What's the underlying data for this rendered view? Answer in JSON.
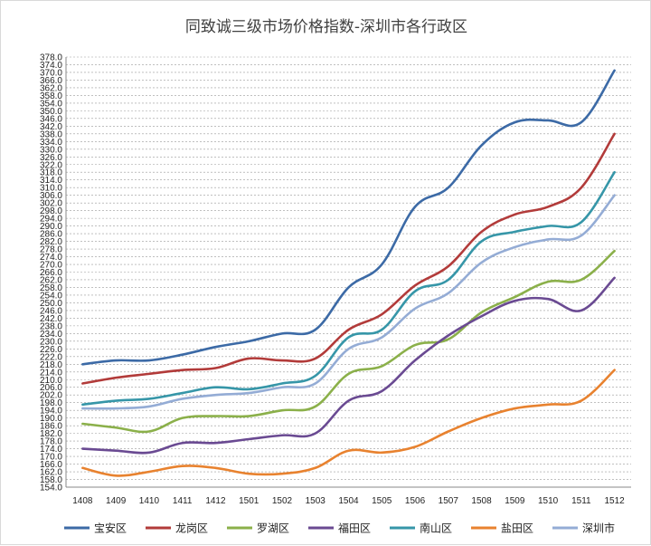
{
  "chart_data": {
    "type": "line",
    "title": "同致诚三级市场价格指数-深圳市各行政区",
    "categories": [
      "1408",
      "1409",
      "1410",
      "1411",
      "1412",
      "1501",
      "1502",
      "1503",
      "1504",
      "1505",
      "1506",
      "1507",
      "1508",
      "1509",
      "1510",
      "1511",
      "1512"
    ],
    "ylim": [
      154.0,
      378.0
    ],
    "ytick_step": 4,
    "grid": "horizontal dashed",
    "legend_position": "bottom",
    "series": [
      {
        "name": "宝安区",
        "color": "#3c6aa6",
        "values": [
          218,
          220,
          220,
          223,
          227,
          230,
          234,
          236,
          258,
          270,
          300,
          310,
          332,
          344,
          345,
          344,
          371
        ]
      },
      {
        "name": "龙岗区",
        "color": "#b23b3a",
        "values": [
          208,
          211,
          213,
          215,
          216,
          221,
          220,
          221,
          236,
          244,
          259,
          269,
          287,
          296,
          300,
          310,
          338
        ]
      },
      {
        "name": "罗湖区",
        "color": "#8bb04a",
        "values": [
          187,
          185,
          183,
          190,
          191,
          191,
          194,
          196,
          213,
          217,
          228,
          231,
          245,
          253,
          261,
          262,
          277
        ]
      },
      {
        "name": "福田区",
        "color": "#6a4a92",
        "values": [
          174,
          173,
          172,
          177,
          177,
          179,
          181,
          182,
          199,
          204,
          220,
          233,
          243,
          251,
          252,
          246,
          263
        ]
      },
      {
        "name": "南山区",
        "color": "#3696a8",
        "values": [
          197,
          199,
          200,
          203,
          206,
          205,
          208,
          212,
          232,
          236,
          256,
          262,
          282,
          287,
          290,
          292,
          318
        ]
      },
      {
        "name": "盐田区",
        "color": "#e8822f",
        "values": [
          164,
          160,
          162,
          165,
          164,
          161,
          161,
          164,
          173,
          172,
          175,
          183,
          190,
          195,
          197,
          199,
          215
        ]
      },
      {
        "name": "深圳市",
        "color": "#94acd5",
        "values": [
          195,
          195,
          196,
          200,
          202,
          203,
          206,
          208,
          226,
          232,
          247,
          255,
          271,
          279,
          283,
          285,
          306
        ]
      }
    ]
  }
}
